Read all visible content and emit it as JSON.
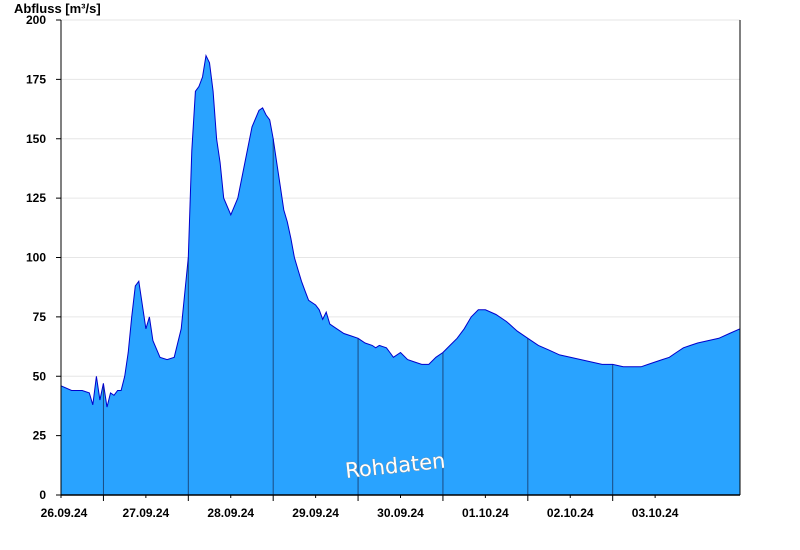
{
  "chart_data": {
    "type": "area",
    "title": "",
    "ylabel": "Abfluss [m³/s]",
    "xlabel": "",
    "ylim": [
      0,
      200
    ],
    "yticks": [
      0,
      25,
      50,
      75,
      100,
      125,
      150,
      175,
      200
    ],
    "x_range_days": [
      "25.09.24 12:00",
      "03.10.24 12:00"
    ],
    "day_labels": [
      "26.09.24",
      "27.09.24",
      "28.09.24",
      "29.09.24",
      "30.09.24",
      "01.10.24",
      "02.10.24",
      "03.10.24"
    ],
    "grid": true,
    "watermark": "Rohdaten",
    "colors": {
      "fill": "#29a3ff",
      "line": "#0000cc",
      "grid": "#e6e6e6",
      "divider": "#1a4a80"
    },
    "series": [
      {
        "name": "",
        "x_hours_from_start": [
          0,
          3,
          6,
          8,
          9,
          10,
          11,
          12,
          13,
          14,
          15,
          16,
          17,
          18,
          19,
          20,
          21,
          22,
          24,
          25,
          26,
          28,
          30,
          32,
          34,
          36,
          37,
          38,
          39,
          40,
          41,
          42,
          43,
          44,
          45,
          46,
          48,
          50,
          52,
          54,
          56,
          57,
          58,
          59,
          60,
          61,
          62,
          63,
          64,
          65,
          66,
          67,
          68,
          69,
          70,
          72,
          73,
          74,
          75,
          76,
          78,
          80,
          82,
          84,
          86,
          88,
          89,
          90,
          92,
          93,
          94,
          96,
          98,
          100,
          102,
          104,
          106,
          108,
          110,
          112,
          114,
          116,
          118,
          120,
          123,
          126,
          129,
          132,
          135,
          138,
          141,
          144,
          147,
          150,
          153,
          156,
          159,
          162,
          164,
          166,
          168,
          170,
          172,
          174,
          176,
          178,
          180,
          183,
          186,
          189,
          192
        ],
        "values": [
          46,
          44,
          44,
          43,
          38,
          50,
          40,
          47,
          37,
          43,
          42,
          44,
          44,
          50,
          60,
          75,
          88,
          90,
          70,
          75,
          65,
          58,
          57,
          58,
          70,
          100,
          145,
          170,
          172,
          176,
          185,
          182,
          170,
          150,
          140,
          125,
          118,
          125,
          140,
          155,
          162,
          163,
          160,
          158,
          150,
          140,
          130,
          120,
          115,
          108,
          100,
          95,
          90,
          86,
          82,
          80,
          78,
          74,
          77,
          72,
          70,
          68,
          67,
          66,
          64,
          63,
          62,
          63,
          62,
          60,
          58,
          60,
          57,
          56,
          55,
          55,
          58,
          60,
          63,
          66,
          70,
          75,
          78,
          78,
          76,
          73,
          69,
          66,
          63,
          61,
          59,
          58,
          57,
          56,
          55,
          55,
          54,
          54,
          54,
          55,
          56,
          57,
          58,
          60,
          62,
          63,
          64,
          65,
          66,
          68,
          70
        ]
      }
    ]
  }
}
